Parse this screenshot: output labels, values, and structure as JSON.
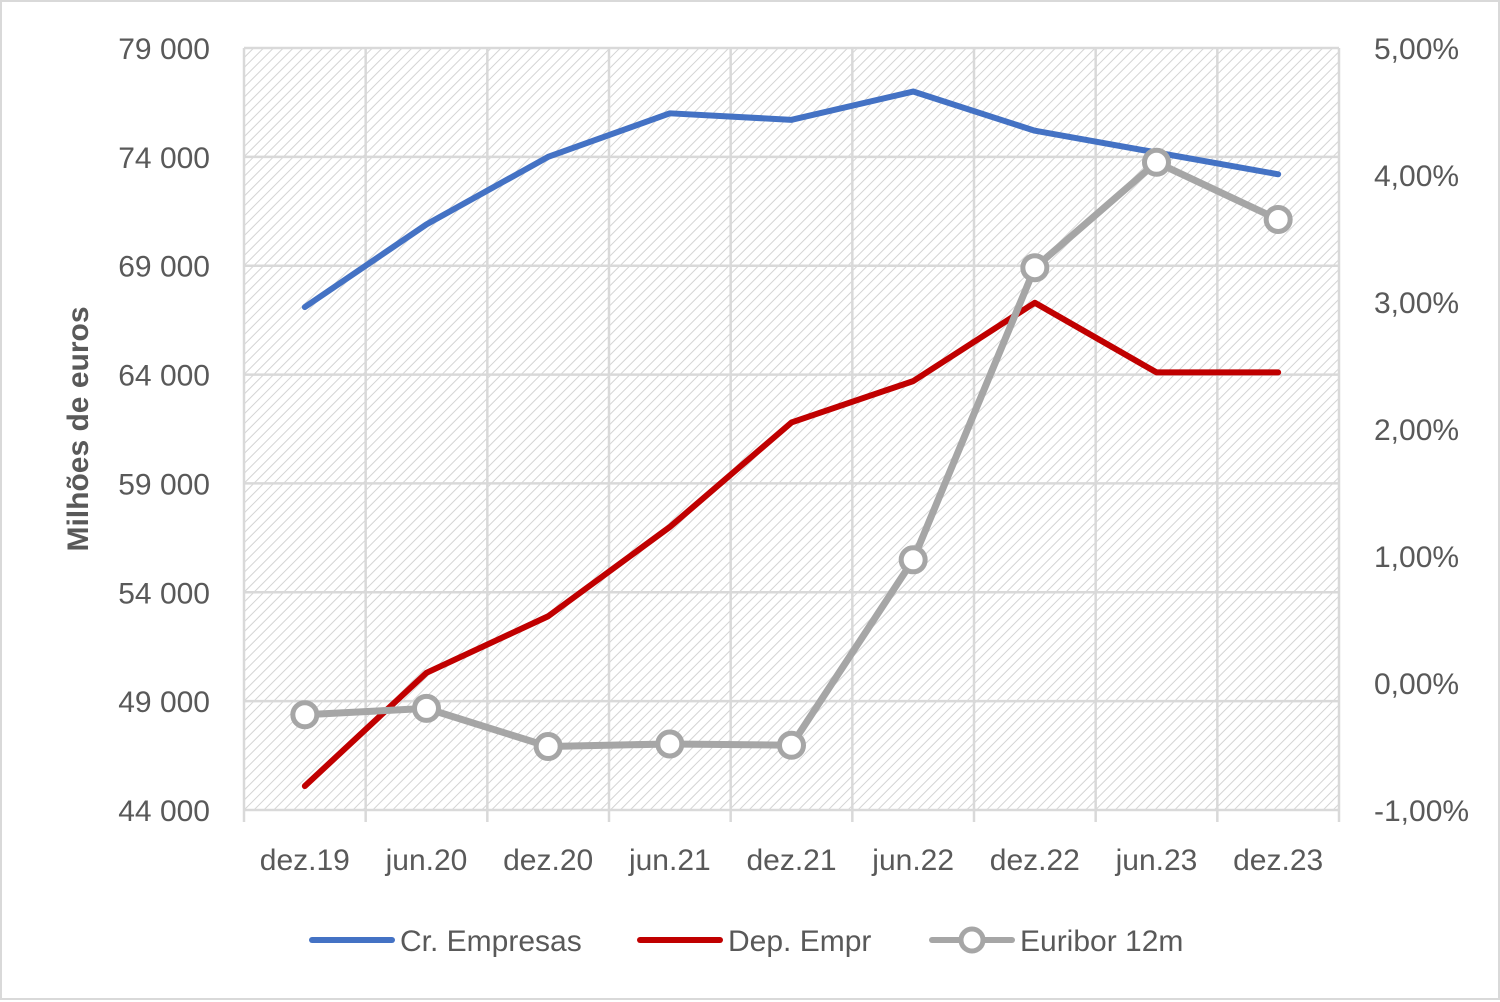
{
  "chart_data": {
    "type": "line",
    "title": "",
    "ylabel": "Milhões de euros",
    "y2label": "",
    "categories": [
      "dez.19",
      "jun.20",
      "dez.20",
      "jun.21",
      "dez.21",
      "jun.22",
      "dez.22",
      "jun.23",
      "dez.23"
    ],
    "ylim": [
      44000,
      79000
    ],
    "yticks": [
      44000,
      49000,
      54000,
      59000,
      64000,
      69000,
      74000,
      79000
    ],
    "ytick_labels": [
      "44 000",
      "49 000",
      "54 000",
      "59 000",
      "64 000",
      "69 000",
      "74 000",
      "79 000"
    ],
    "y2lim": [
      -1.0,
      5.0
    ],
    "y2ticks": [
      -1,
      0,
      1,
      2,
      3,
      4,
      5
    ],
    "y2tick_labels": [
      "-1,00%",
      "0,00%",
      "1,00%",
      "2,00%",
      "3,00%",
      "4,00%",
      "5,00%"
    ],
    "grid": true,
    "legend_position": "bottom",
    "series": [
      {
        "name": "Cr. Empresas",
        "axis": "left",
        "color": "#4472c4",
        "marker": "none",
        "values": [
          67100,
          70900,
          74000,
          76000,
          75700,
          77000,
          75200,
          74200,
          73200
        ]
      },
      {
        "name": "Dep. Empr",
        "axis": "left",
        "color": "#c00000",
        "marker": "none",
        "values": [
          45100,
          50300,
          52900,
          57000,
          61800,
          63700,
          67300,
          64100,
          64100
        ]
      },
      {
        "name": "Euribor 12m",
        "axis": "right",
        "color": "#a6a6a6",
        "marker": "circle",
        "values": [
          -0.25,
          -0.2,
          -0.5,
          -0.48,
          -0.49,
          0.97,
          3.27,
          4.1,
          3.65
        ]
      }
    ]
  }
}
